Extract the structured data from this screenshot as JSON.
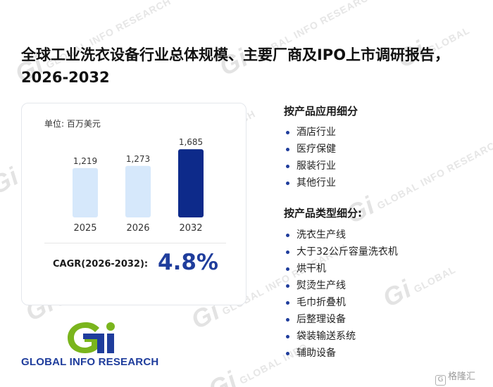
{
  "title": "全球工业洗衣设备行业总体规模、主要厂商及IPO上市调研报告，2026-2032",
  "chart_data": {
    "type": "bar",
    "unit_label": "单位: 百万美元",
    "categories": [
      "2025",
      "2026",
      "2032"
    ],
    "values": [
      1219,
      1273,
      1685
    ],
    "value_labels": [
      "1,219",
      "1,273",
      "1,685"
    ],
    "bar_colors": [
      "#d6e8fb",
      "#d6e8fb",
      "#0d2a8a"
    ],
    "ylim": [
      0,
      2000
    ],
    "grid": false,
    "legend": "none"
  },
  "cagr": {
    "label": "CAGR(2026-2032):",
    "value": "4.8%"
  },
  "logo": {
    "text": "GLOBAL INFO RESEARCH",
    "icon": "gi-logo-icon"
  },
  "segments": {
    "application": {
      "heading": "按产品应用细分",
      "items": [
        "酒店行业",
        "医疗保健",
        "服装行业",
        "其他行业"
      ]
    },
    "type": {
      "heading": "按产品类型细分:",
      "items": [
        "洗衣生产线",
        "大于32公斤容量洗衣机",
        "烘干机",
        "熨烫生产线",
        "毛巾折叠机",
        "后整理设备",
        "袋装输送系统",
        "辅助设备"
      ]
    }
  },
  "corner": {
    "label": "格隆汇"
  },
  "watermark": "GLOBAL INFO RESEARCH",
  "colors": {
    "accent": "#1f3d9c",
    "bar_light": "#d6e8fb",
    "bar_dark": "#0d2a8a"
  }
}
